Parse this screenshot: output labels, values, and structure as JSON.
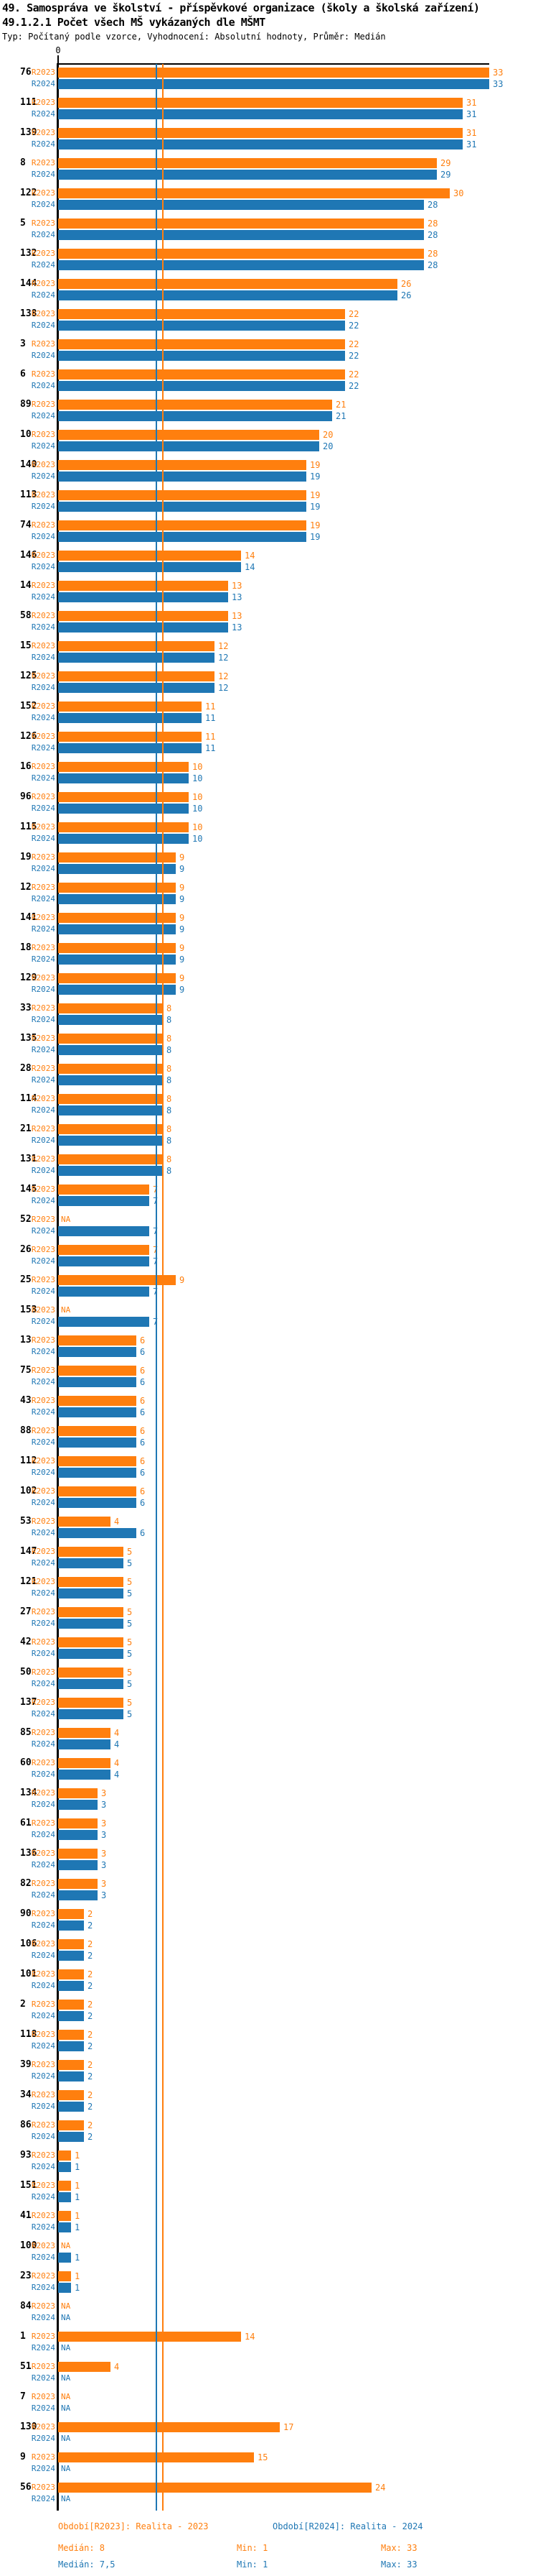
{
  "header": {
    "title": "49. Samospráva ve školství - příspěvkové organizace (školy a školská zařízení)",
    "subtitle": "49.1.2.1 Počet všech MŠ vykázaných dle MŠMT",
    "meta": "Typ: Počítaný podle vzorce, Vyhodnocení: Absolutní hodnoty, Průměr: Medián"
  },
  "chart_data": {
    "type": "bar",
    "orientation": "horizontal",
    "title": "49.1.2.1 Počet všech MŠ vykázaných dle MŠMT",
    "x_axis": {
      "tick_label": "0",
      "min": 0,
      "max": 33
    },
    "grid": false,
    "na_label": "NA",
    "series_meta": [
      {
        "key": "r2023",
        "label": "R2023",
        "color": "#ff7f0e",
        "median": 8,
        "legend": "Období[R2023]: Realita - 2023",
        "median_text": "Medián: 8",
        "min_text": "Min: 1",
        "max_text": "Max: 33"
      },
      {
        "key": "r2024",
        "label": "R2024",
        "color": "#1f77b4",
        "median": 7.5,
        "legend": "Období[R2024]: Realita - 2024",
        "median_text": "Medián: 7,5",
        "min_text": "Min: 1",
        "max_text": "Max: 33"
      }
    ],
    "groups": [
      {
        "id": "76",
        "r2023": 33,
        "r2024": 33
      },
      {
        "id": "111",
        "r2023": 31,
        "r2024": 31
      },
      {
        "id": "139",
        "r2023": 31,
        "r2024": 31
      },
      {
        "id": "8",
        "r2023": 29,
        "r2024": 29
      },
      {
        "id": "122",
        "r2023": 30,
        "r2024": 28
      },
      {
        "id": "5",
        "r2023": 28,
        "r2024": 28
      },
      {
        "id": "132",
        "r2023": 28,
        "r2024": 28
      },
      {
        "id": "144",
        "r2023": 26,
        "r2024": 26
      },
      {
        "id": "138",
        "r2023": 22,
        "r2024": 22
      },
      {
        "id": "3",
        "r2023": 22,
        "r2024": 22
      },
      {
        "id": "6",
        "r2023": 22,
        "r2024": 22
      },
      {
        "id": "89",
        "r2023": 21,
        "r2024": 21
      },
      {
        "id": "10",
        "r2023": 20,
        "r2024": 20
      },
      {
        "id": "140",
        "r2023": 19,
        "r2024": 19
      },
      {
        "id": "113",
        "r2023": 19,
        "r2024": 19
      },
      {
        "id": "74",
        "r2023": 19,
        "r2024": 19
      },
      {
        "id": "146",
        "r2023": 14,
        "r2024": 14
      },
      {
        "id": "14",
        "r2023": 13,
        "r2024": 13
      },
      {
        "id": "58",
        "r2023": 13,
        "r2024": 13
      },
      {
        "id": "15",
        "r2023": 12,
        "r2024": 12
      },
      {
        "id": "125",
        "r2023": 12,
        "r2024": 12
      },
      {
        "id": "152",
        "r2023": 11,
        "r2024": 11
      },
      {
        "id": "126",
        "r2023": 11,
        "r2024": 11
      },
      {
        "id": "16",
        "r2023": 10,
        "r2024": 10
      },
      {
        "id": "96",
        "r2023": 10,
        "r2024": 10
      },
      {
        "id": "115",
        "r2023": 10,
        "r2024": 10
      },
      {
        "id": "19",
        "r2023": 9,
        "r2024": 9
      },
      {
        "id": "12",
        "r2023": 9,
        "r2024": 9
      },
      {
        "id": "141",
        "r2023": 9,
        "r2024": 9
      },
      {
        "id": "18",
        "r2023": 9,
        "r2024": 9
      },
      {
        "id": "129",
        "r2023": 9,
        "r2024": 9
      },
      {
        "id": "33",
        "r2023": 8,
        "r2024": 8
      },
      {
        "id": "135",
        "r2023": 8,
        "r2024": 8
      },
      {
        "id": "28",
        "r2023": 8,
        "r2024": 8
      },
      {
        "id": "114",
        "r2023": 8,
        "r2024": 8
      },
      {
        "id": "21",
        "r2023": 8,
        "r2024": 8
      },
      {
        "id": "131",
        "r2023": 8,
        "r2024": 8
      },
      {
        "id": "145",
        "r2023": 7,
        "r2024": 7
      },
      {
        "id": "52",
        "r2023": null,
        "r2024": 7
      },
      {
        "id": "26",
        "r2023": 7,
        "r2024": 7
      },
      {
        "id": "25",
        "r2023": 9,
        "r2024": 7
      },
      {
        "id": "153",
        "r2023": null,
        "r2024": 7
      },
      {
        "id": "13",
        "r2023": 6,
        "r2024": 6
      },
      {
        "id": "75",
        "r2023": 6,
        "r2024": 6
      },
      {
        "id": "43",
        "r2023": 6,
        "r2024": 6
      },
      {
        "id": "88",
        "r2023": 6,
        "r2024": 6
      },
      {
        "id": "112",
        "r2023": 6,
        "r2024": 6
      },
      {
        "id": "102",
        "r2023": 6,
        "r2024": 6
      },
      {
        "id": "53",
        "r2023": 4,
        "r2024": 6
      },
      {
        "id": "147",
        "r2023": 5,
        "r2024": 5
      },
      {
        "id": "121",
        "r2023": 5,
        "r2024": 5
      },
      {
        "id": "27",
        "r2023": 5,
        "r2024": 5
      },
      {
        "id": "42",
        "r2023": 5,
        "r2024": 5
      },
      {
        "id": "50",
        "r2023": 5,
        "r2024": 5
      },
      {
        "id": "137",
        "r2023": 5,
        "r2024": 5
      },
      {
        "id": "85",
        "r2023": 4,
        "r2024": 4
      },
      {
        "id": "60",
        "r2023": 4,
        "r2024": 4
      },
      {
        "id": "134",
        "r2023": 3,
        "r2024": 3
      },
      {
        "id": "61",
        "r2023": 3,
        "r2024": 3
      },
      {
        "id": "136",
        "r2023": 3,
        "r2024": 3
      },
      {
        "id": "82",
        "r2023": 3,
        "r2024": 3
      },
      {
        "id": "90",
        "r2023": 2,
        "r2024": 2
      },
      {
        "id": "106",
        "r2023": 2,
        "r2024": 2
      },
      {
        "id": "101",
        "r2023": 2,
        "r2024": 2
      },
      {
        "id": "2",
        "r2023": 2,
        "r2024": 2
      },
      {
        "id": "118",
        "r2023": 2,
        "r2024": 2
      },
      {
        "id": "39",
        "r2023": 2,
        "r2024": 2
      },
      {
        "id": "34",
        "r2023": 2,
        "r2024": 2
      },
      {
        "id": "86",
        "r2023": 2,
        "r2024": 2
      },
      {
        "id": "93",
        "r2023": 1,
        "r2024": 1
      },
      {
        "id": "151",
        "r2023": 1,
        "r2024": 1
      },
      {
        "id": "41",
        "r2023": 1,
        "r2024": 1
      },
      {
        "id": "100",
        "r2023": null,
        "r2024": 1
      },
      {
        "id": "23",
        "r2023": 1,
        "r2024": 1
      },
      {
        "id": "84",
        "r2023": null,
        "r2024": null
      },
      {
        "id": "1",
        "r2023": 14,
        "r2024": null
      },
      {
        "id": "51",
        "r2023": 4,
        "r2024": null
      },
      {
        "id": "7",
        "r2023": null,
        "r2024": null
      },
      {
        "id": "130",
        "r2023": 17,
        "r2024": null
      },
      {
        "id": "9",
        "r2023": 15,
        "r2024": null
      },
      {
        "id": "56",
        "r2023": 24,
        "r2024": null
      }
    ]
  }
}
